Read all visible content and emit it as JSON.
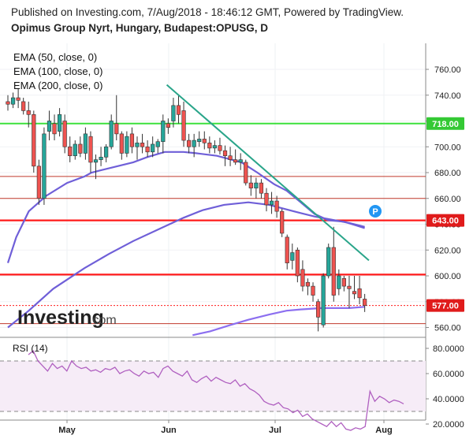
{
  "header": {
    "published": "Published on Investing.com, 7/Aug/2018 - 18:46:12 GMT, Powered by TradingView.",
    "title": "Opimus Group Nyrt, Hungary, Budapest:OPUSG, D"
  },
  "legend": [
    "EMA (50, close, 0)",
    "EMA (100, close, 0)",
    "EMA (200, close, 0)"
  ],
  "watermark": {
    "brand": "Investing",
    "suffix": ".com"
  },
  "rsi_label": "RSI (14)",
  "price_axis": {
    "ticks": [
      "760.00",
      "740.00",
      "720.00",
      "700.00",
      "680.00",
      "660.00",
      "640.00",
      "620.00",
      "600.00",
      "580.00",
      "560.00"
    ]
  },
  "rsi_axis": {
    "ticks": [
      "80.0000",
      "60.0000",
      "40.0000",
      "20.0000"
    ]
  },
  "x_axis": {
    "ticks": [
      "May",
      "Jun",
      "Jul",
      "Aug"
    ]
  },
  "badges": {
    "resistance_718": "718.00",
    "resistance_643": "643.00",
    "last_price": "577.00",
    "pivot": "P"
  },
  "colors": {
    "up": "#26a69a",
    "down": "#ef5350",
    "ema": "#6f5fd8",
    "ema200": "#8c6ff0",
    "green_line": "#3be03b",
    "red_line": "#ff1a1a",
    "trend": "#2aa58a",
    "rsi": "#b060c0"
  },
  "chart_data": [
    {
      "type": "candlestick",
      "title": "Opimus Group Nyrt, Hungary, Budapest:OPUSG, D",
      "ylim": [
        555,
        768
      ],
      "x_ticks": [
        "May",
        "Jun",
        "Jul",
        "Aug"
      ],
      "candles": [
        {
          "o": 735,
          "h": 740,
          "l": 728,
          "c": 733
        },
        {
          "o": 733,
          "h": 742,
          "l": 730,
          "c": 738
        },
        {
          "o": 738,
          "h": 745,
          "l": 730,
          "c": 736
        },
        {
          "o": 735,
          "h": 738,
          "l": 725,
          "c": 728
        },
        {
          "o": 728,
          "h": 735,
          "l": 715,
          "c": 725
        },
        {
          "o": 725,
          "h": 728,
          "l": 680,
          "c": 685
        },
        {
          "o": 685,
          "h": 690,
          "l": 655,
          "c": 660
        },
        {
          "o": 660,
          "h": 715,
          "l": 655,
          "c": 710
        },
        {
          "o": 712,
          "h": 728,
          "l": 705,
          "c": 720
        },
        {
          "o": 718,
          "h": 725,
          "l": 705,
          "c": 710
        },
        {
          "o": 712,
          "h": 730,
          "l": 708,
          "c": 725
        },
        {
          "o": 720,
          "h": 725,
          "l": 695,
          "c": 700
        },
        {
          "o": 700,
          "h": 708,
          "l": 688,
          "c": 693
        },
        {
          "o": 693,
          "h": 705,
          "l": 690,
          "c": 702
        },
        {
          "o": 702,
          "h": 708,
          "l": 692,
          "c": 695
        },
        {
          "o": 695,
          "h": 715,
          "l": 690,
          "c": 710
        },
        {
          "o": 708,
          "h": 712,
          "l": 680,
          "c": 688
        },
        {
          "o": 688,
          "h": 694,
          "l": 675,
          "c": 690
        },
        {
          "o": 690,
          "h": 700,
          "l": 685,
          "c": 692
        },
        {
          "o": 692,
          "h": 702,
          "l": 688,
          "c": 700
        },
        {
          "o": 700,
          "h": 725,
          "l": 698,
          "c": 720
        },
        {
          "o": 718,
          "h": 740,
          "l": 705,
          "c": 710
        },
        {
          "o": 710,
          "h": 712,
          "l": 690,
          "c": 695
        },
        {
          "o": 695,
          "h": 712,
          "l": 692,
          "c": 708
        },
        {
          "o": 710,
          "h": 715,
          "l": 695,
          "c": 700
        },
        {
          "o": 700,
          "h": 708,
          "l": 690,
          "c": 703
        },
        {
          "o": 703,
          "h": 710,
          "l": 695,
          "c": 700
        },
        {
          "o": 700,
          "h": 705,
          "l": 692,
          "c": 696
        },
        {
          "o": 696,
          "h": 708,
          "l": 692,
          "c": 702
        },
        {
          "o": 700,
          "h": 706,
          "l": 695,
          "c": 704
        },
        {
          "o": 704,
          "h": 725,
          "l": 695,
          "c": 720
        },
        {
          "o": 718,
          "h": 722,
          "l": 710,
          "c": 715
        },
        {
          "o": 720,
          "h": 738,
          "l": 715,
          "c": 732
        },
        {
          "o": 732,
          "h": 740,
          "l": 718,
          "c": 725
        },
        {
          "o": 728,
          "h": 735,
          "l": 700,
          "c": 705
        },
        {
          "o": 705,
          "h": 710,
          "l": 695,
          "c": 700
        },
        {
          "o": 700,
          "h": 710,
          "l": 692,
          "c": 705
        },
        {
          "o": 704,
          "h": 712,
          "l": 700,
          "c": 706
        },
        {
          "o": 706,
          "h": 712,
          "l": 698,
          "c": 703
        },
        {
          "o": 703,
          "h": 708,
          "l": 695,
          "c": 699
        },
        {
          "o": 699,
          "h": 705,
          "l": 695,
          "c": 701
        },
        {
          "o": 701,
          "h": 707,
          "l": 694,
          "c": 697
        },
        {
          "o": 697,
          "h": 701,
          "l": 685,
          "c": 693
        },
        {
          "o": 693,
          "h": 700,
          "l": 685,
          "c": 690
        },
        {
          "o": 690,
          "h": 698,
          "l": 686,
          "c": 688
        },
        {
          "o": 688,
          "h": 695,
          "l": 682,
          "c": 690
        },
        {
          "o": 688,
          "h": 690,
          "l": 670,
          "c": 672
        },
        {
          "o": 672,
          "h": 678,
          "l": 662,
          "c": 668
        },
        {
          "o": 668,
          "h": 676,
          "l": 660,
          "c": 672
        },
        {
          "o": 672,
          "h": 675,
          "l": 660,
          "c": 664
        },
        {
          "o": 664,
          "h": 668,
          "l": 650,
          "c": 655
        },
        {
          "o": 655,
          "h": 665,
          "l": 648,
          "c": 658
        },
        {
          "o": 658,
          "h": 662,
          "l": 645,
          "c": 650
        },
        {
          "o": 650,
          "h": 652,
          "l": 630,
          "c": 633
        },
        {
          "o": 630,
          "h": 632,
          "l": 605,
          "c": 610
        },
        {
          "o": 612,
          "h": 625,
          "l": 605,
          "c": 618
        },
        {
          "o": 620,
          "h": 622,
          "l": 595,
          "c": 600
        },
        {
          "o": 605,
          "h": 612,
          "l": 588,
          "c": 592
        },
        {
          "o": 595,
          "h": 598,
          "l": 585,
          "c": 592
        },
        {
          "o": 592,
          "h": 595,
          "l": 580,
          "c": 585
        },
        {
          "o": 580,
          "h": 582,
          "l": 557,
          "c": 568
        },
        {
          "o": 562,
          "h": 602,
          "l": 560,
          "c": 600
        },
        {
          "o": 600,
          "h": 625,
          "l": 598,
          "c": 622
        },
        {
          "o": 622,
          "h": 638,
          "l": 580,
          "c": 585
        },
        {
          "o": 590,
          "h": 605,
          "l": 585,
          "c": 600
        },
        {
          "o": 598,
          "h": 600,
          "l": 588,
          "c": 592
        },
        {
          "o": 592,
          "h": 600,
          "l": 575,
          "c": 590
        },
        {
          "o": 588,
          "h": 600,
          "l": 582,
          "c": 586
        },
        {
          "o": 590,
          "h": 600,
          "l": 578,
          "c": 583
        },
        {
          "o": 582,
          "h": 586,
          "l": 572,
          "c": 577
        }
      ],
      "lines": [
        {
          "name": "EMA (50, close, 0)",
          "values": [
            {
              "x": 0,
              "y": 610
            },
            {
              "x": 12,
              "y": 630
            },
            {
              "x": 30,
              "y": 650
            },
            {
              "x": 55,
              "y": 662
            },
            {
              "x": 85,
              "y": 672
            },
            {
              "x": 110,
              "y": 677
            },
            {
              "x": 120,
              "y": 680
            },
            {
              "x": 150,
              "y": 684
            },
            {
              "x": 180,
              "y": 688
            },
            {
              "x": 200,
              "y": 692
            },
            {
              "x": 225,
              "y": 696
            },
            {
              "x": 252,
              "y": 696
            },
            {
              "x": 270,
              "y": 695
            },
            {
              "x": 300,
              "y": 693
            },
            {
              "x": 335,
              "y": 688
            },
            {
              "x": 358,
              "y": 680
            },
            {
              "x": 382,
              "y": 671
            },
            {
              "x": 400,
              "y": 666
            },
            {
              "x": 418,
              "y": 658
            },
            {
              "x": 440,
              "y": 648
            },
            {
              "x": 460,
              "y": 643
            },
            {
              "x": 482,
              "y": 642
            },
            {
              "x": 500,
              "y": 639
            },
            {
              "x": 512,
              "y": 637
            }
          ]
        },
        {
          "name": "EMA (100, close, 0)",
          "values": [
            {
              "x": 0,
              "y": 560
            },
            {
              "x": 30,
              "y": 573
            },
            {
              "x": 65,
              "y": 590
            },
            {
              "x": 110,
              "y": 606
            },
            {
              "x": 145,
              "y": 617
            },
            {
              "x": 180,
              "y": 627
            },
            {
              "x": 220,
              "y": 637
            },
            {
              "x": 252,
              "y": 645
            },
            {
              "x": 280,
              "y": 651
            },
            {
              "x": 310,
              "y": 655
            },
            {
              "x": 345,
              "y": 657
            },
            {
              "x": 375,
              "y": 655
            },
            {
              "x": 410,
              "y": 650
            },
            {
              "x": 440,
              "y": 646
            },
            {
              "x": 470,
              "y": 643
            },
            {
              "x": 490,
              "y": 641
            },
            {
              "x": 512,
              "y": 638
            }
          ]
        },
        {
          "name": "EMA (200, close, 0)",
          "values": [
            {
              "x": 265,
              "y": 554
            },
            {
              "x": 290,
              "y": 557
            },
            {
              "x": 320,
              "y": 562
            },
            {
              "x": 345,
              "y": 566
            },
            {
              "x": 375,
              "y": 570
            },
            {
              "x": 400,
              "y": 573
            },
            {
              "x": 420,
              "y": 574
            },
            {
              "x": 450,
              "y": 575
            },
            {
              "x": 470,
              "y": 575
            },
            {
              "x": 490,
              "y": 575
            },
            {
              "x": 512,
              "y": 576
            }
          ]
        }
      ],
      "trendline": [
        {
          "x": 228,
          "y": 748
        },
        {
          "x": 518,
          "y": 612
        }
      ],
      "horizontal_levels": [
        {
          "y": 718,
          "color": "green"
        },
        {
          "y": 643,
          "color": "red",
          "thick": true
        },
        {
          "y": 601,
          "color": "red",
          "thick": true
        },
        {
          "y": 677,
          "color": "red"
        },
        {
          "y": 660,
          "color": "red"
        },
        {
          "y": 563,
          "color": "red"
        },
        {
          "y": 577,
          "color": "red",
          "dotted": true
        }
      ]
    },
    {
      "type": "line",
      "title": "RSI (14)",
      "ylim": [
        12,
        84
      ],
      "ticks": [
        80,
        60,
        40,
        20
      ],
      "bands": [
        70,
        30
      ],
      "values": [
        75,
        78,
        70,
        66,
        62,
        68,
        64,
        66,
        62,
        70,
        66,
        64,
        65,
        62,
        63,
        61,
        64,
        63,
        65,
        60,
        62,
        63,
        60,
        58,
        62,
        60,
        61,
        57,
        64,
        66,
        62,
        60,
        58,
        62,
        55,
        53,
        56,
        58,
        54,
        57,
        55,
        53,
        52,
        55,
        50,
        52,
        48,
        46,
        43,
        38,
        36,
        35,
        37,
        33,
        32,
        29,
        31,
        26,
        28,
        24,
        22,
        20,
        18,
        22,
        18,
        21,
        16,
        15,
        17,
        16,
        18,
        46,
        38,
        42,
        40,
        37,
        39,
        38,
        36
      ]
    }
  ]
}
